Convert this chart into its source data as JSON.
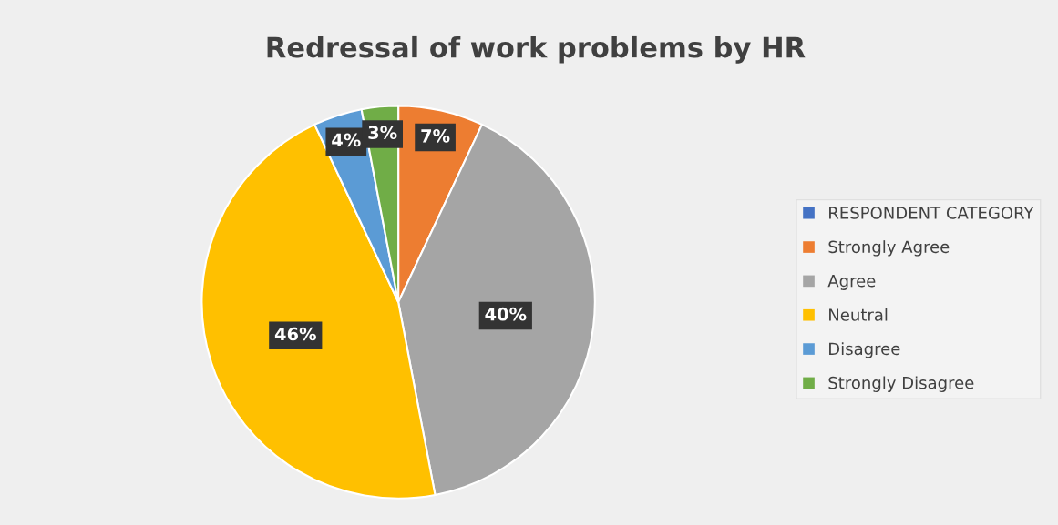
{
  "chart_data": {
    "type": "pie",
    "title": "Redressal of work problems by HR",
    "categories": [
      "RESPONDENT CATEGORY",
      "Strongly Agree",
      "Agree",
      "Neutral",
      "Disagree",
      "Strongly Disagree"
    ],
    "values": [
      0,
      7,
      40,
      46,
      4,
      3
    ],
    "colors": [
      "#4472c4",
      "#ed7d31",
      "#a5a5a5",
      "#ffc000",
      "#5b9bd5",
      "#70ad47"
    ],
    "value_labels": [
      null,
      "7%",
      "40%",
      "46%",
      "4%",
      "3%"
    ],
    "legend": "right"
  }
}
